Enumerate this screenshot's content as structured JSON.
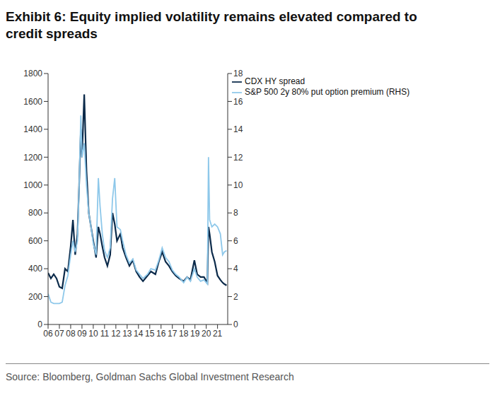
{
  "chart_data": {
    "type": "line",
    "title": "Exhibit 6:  Equity implied volatility remains elevated compared to credit spreads",
    "source": "Source: Bloomberg, Goldman Sachs Global Investment Research",
    "x": [
      2006.0,
      2006.25,
      2006.5,
      2006.75,
      2007.0,
      2007.25,
      2007.5,
      2007.75,
      2008.0,
      2008.2,
      2008.4,
      2008.6,
      2008.75,
      2008.9,
      2009.0,
      2009.2,
      2009.4,
      2009.6,
      2009.8,
      2010.0,
      2010.25,
      2010.45,
      2010.6,
      2010.8,
      2011.0,
      2011.25,
      2011.5,
      2011.7,
      2011.9,
      2012.1,
      2012.4,
      2012.6,
      2012.9,
      2013.2,
      2013.5,
      2013.8,
      2014.1,
      2014.4,
      2014.8,
      2015.1,
      2015.5,
      2015.8,
      2016.1,
      2016.4,
      2016.7,
      2017.0,
      2017.3,
      2017.6,
      2018.0,
      2018.3,
      2018.6,
      2018.95,
      2019.2,
      2019.5,
      2019.8,
      2020.1,
      2020.2,
      2020.3,
      2020.5,
      2020.75,
      2021.0,
      2021.25,
      2021.45,
      2021.6,
      2021.8
    ],
    "series": [
      {
        "name": "CDX HY spread",
        "color": "#0b2a4a",
        "values": [
          370,
          330,
          360,
          330,
          270,
          260,
          400,
          380,
          560,
          750,
          500,
          650,
          1000,
          1400,
          1200,
          1650,
          1100,
          800,
          700,
          600,
          480,
          700,
          650,
          560,
          480,
          420,
          500,
          800,
          720,
          600,
          650,
          550,
          480,
          420,
          460,
          380,
          340,
          310,
          350,
          380,
          360,
          450,
          520,
          450,
          420,
          380,
          350,
          330,
          310,
          340,
          320,
          460,
          360,
          340,
          340,
          300,
          700,
          650,
          520,
          450,
          350,
          320,
          300,
          290,
          280
        ]
      },
      {
        "name": "S&P 500 2y 80% put option premium (RHS)",
        "color": "#8ec8ea",
        "axis": "y2",
        "values": [
          2.2,
          1.6,
          1.5,
          1.5,
          1.5,
          1.6,
          2.8,
          3.5,
          5.0,
          6.0,
          5.2,
          6.0,
          10,
          15,
          12,
          13,
          10,
          8,
          7,
          5.8,
          5.0,
          10.5,
          8.5,
          6.5,
          5.3,
          4.8,
          5.5,
          9,
          10.5,
          7,
          6.8,
          6,
          5,
          4.4,
          4.7,
          3.9,
          3.6,
          3.3,
          3.6,
          4.0,
          3.9,
          4.6,
          5.5,
          4.8,
          4.5,
          3.9,
          3.6,
          3.4,
          3.0,
          3.4,
          3.1,
          4.0,
          3.4,
          3.1,
          3.2,
          2.9,
          12.0,
          7.5,
          7.0,
          7.2,
          7.0,
          6.5,
          5.0,
          5.2,
          5.3
        ]
      }
    ],
    "xlim": [
      2006,
      2021.9
    ],
    "xticks": [
      {
        "value": 2006,
        "label": "06"
      },
      {
        "value": 2007,
        "label": "07"
      },
      {
        "value": 2008,
        "label": "08"
      },
      {
        "value": 2009,
        "label": "09"
      },
      {
        "value": 2010,
        "label": "10"
      },
      {
        "value": 2011,
        "label": "11"
      },
      {
        "value": 2012,
        "label": "12"
      },
      {
        "value": 2013,
        "label": "13"
      },
      {
        "value": 2014,
        "label": "14"
      },
      {
        "value": 2015,
        "label": "15"
      },
      {
        "value": 2016,
        "label": "16"
      },
      {
        "value": 2017,
        "label": "17"
      },
      {
        "value": 2018,
        "label": "18"
      },
      {
        "value": 2019,
        "label": "19"
      },
      {
        "value": 2020,
        "label": "20"
      },
      {
        "value": 2021,
        "label": "21"
      }
    ],
    "ylim": [
      0,
      1800
    ],
    "yticks": [
      0,
      200,
      400,
      600,
      800,
      1000,
      1200,
      1400,
      1600,
      1800
    ],
    "y2lim": [
      0,
      18
    ],
    "y2ticks": [
      0,
      2,
      4,
      6,
      8,
      10,
      12,
      14,
      16,
      18
    ],
    "legend": "top",
    "grid": false
  }
}
